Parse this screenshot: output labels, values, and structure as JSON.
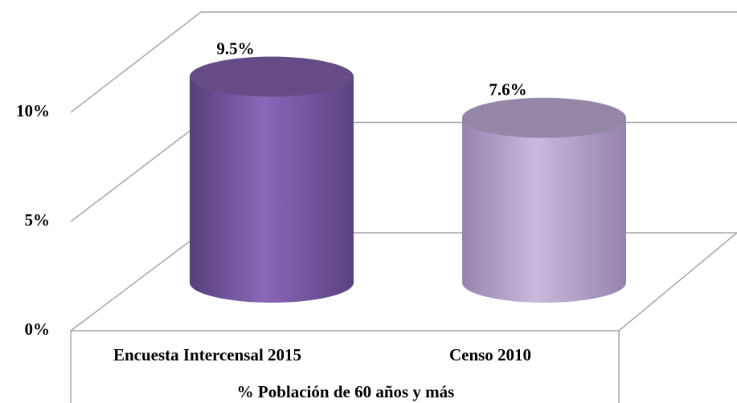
{
  "chart_data": {
    "type": "bar3d",
    "categories": [
      "Encuesta Intercensal 2015",
      "Censo 2010"
    ],
    "values": [
      9.5,
      7.6
    ],
    "value_labels": [
      "9.5%",
      "7.6%"
    ],
    "colors": [
      "#7e5fa8",
      "#b9a7cf"
    ],
    "x_label": "% Población de 60 años y más",
    "ylim": [
      0,
      10
    ],
    "yticks": [
      {
        "value": 0,
        "label": "0%"
      },
      {
        "value": 5,
        "label": "5%"
      },
      {
        "value": 10,
        "label": "10%"
      }
    ],
    "grid": true
  }
}
